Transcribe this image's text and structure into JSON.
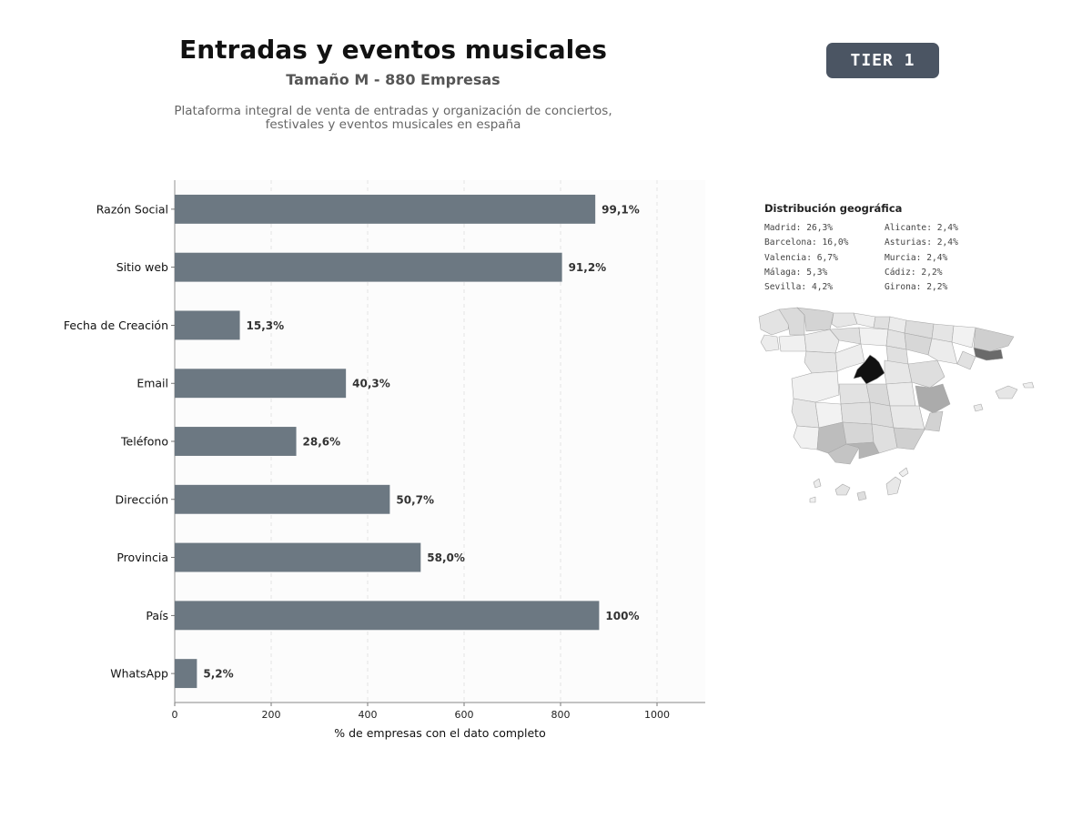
{
  "header": {
    "title": "Entradas y eventos musicales",
    "subtitle": "Tamaño M - 880 Empresas",
    "description_line1": "Plataforma integral de venta de entradas y organización de conciertos,",
    "description_line2": "festivales y eventos musicales en españa",
    "tier_label": "TIER 1"
  },
  "chart_data": {
    "type": "bar",
    "orientation": "horizontal",
    "categories": [
      "Razón Social",
      "Sitio web",
      "Fecha de Creación",
      "Email",
      "Teléfono",
      "Dirección",
      "Provincia",
      "País",
      "WhatsApp"
    ],
    "values": [
      872,
      803,
      135,
      355,
      252,
      446,
      510,
      880,
      46
    ],
    "value_labels": [
      "99,1%",
      "91,2%",
      "15,3%",
      "40,3%",
      "28,6%",
      "50,7%",
      "58,0%",
      "100%",
      "5,2%"
    ],
    "xlabel": "% de empresas con el dato completo",
    "xlim": [
      0,
      1100
    ],
    "xticks": [
      0,
      200,
      400,
      600,
      800,
      1000
    ],
    "grid": "vertical dashed",
    "bar_color": "#6c7882"
  },
  "geo": {
    "title": "Distribución geográfica",
    "left_column": [
      "Madrid: 26,3%",
      "Barcelona: 16,0%",
      "Valencia: 6,7%",
      "Málaga: 5,3%",
      "Sevilla: 4,2%"
    ],
    "right_column": [
      "Alicante: 2,4%",
      "Asturias: 2,4%",
      "Murcia: 2,4%",
      "Cádiz: 2,2%",
      "Girona: 2,2%"
    ]
  },
  "colors": {
    "badge_bg": "#4b5563",
    "bar": "#6c7882",
    "plot_bg": "#fcfcfc",
    "map_max": "#111111",
    "map_min": "#f2f2f2"
  }
}
